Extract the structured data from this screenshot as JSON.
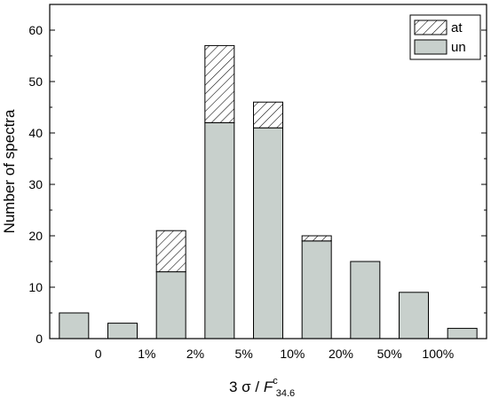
{
  "chart_data": {
    "type": "bar",
    "stacked": true,
    "categories": [
      "",
      "",
      "",
      "",
      "",
      "",
      "",
      "",
      ""
    ],
    "xticks": [
      "0",
      "1%",
      "2%",
      "5%",
      "10%",
      "20%",
      "50%",
      "100%"
    ],
    "series": [
      {
        "name": "un",
        "values": [
          5,
          3,
          13,
          42,
          41,
          19,
          15,
          9,
          2
        ],
        "color": "#c8d0cc",
        "pattern": "solid"
      },
      {
        "name": "at",
        "values": [
          0,
          0,
          8,
          15,
          5,
          1,
          0,
          0,
          0
        ],
        "color": "#ffffff",
        "pattern": "hatch"
      }
    ],
    "xlabel": {
      "prefix": "3 σ / ",
      "italic": "F",
      "sup": "c",
      "sub": "34.6"
    },
    "ylabel": "Number of  spectra",
    "ylim": [
      0,
      65
    ],
    "yticks": [
      0,
      10,
      20,
      30,
      40,
      50,
      60
    ],
    "grid": false,
    "legend_position": "top-right",
    "legend": [
      "at",
      "un"
    ]
  }
}
